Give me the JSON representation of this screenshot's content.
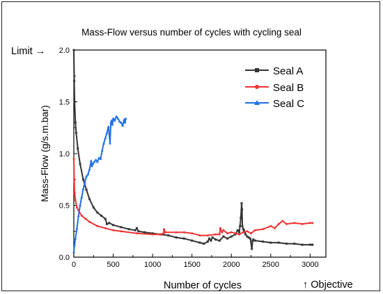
{
  "chart_data": {
    "type": "line",
    "title": "Mass-Flow versus number of cycles with cycling seal",
    "xlabel": "Number of cycles",
    "ylabel": "Mass-Flow (g/s.m.bar)",
    "xlim": [
      0,
      3200
    ],
    "ylim": [
      0,
      2.0
    ],
    "x_ticks": [
      "0",
      "500",
      "1000",
      "1500",
      "2000",
      "2500",
      "3000"
    ],
    "y_ticks": [
      "0.0",
      "0.5",
      "1.0",
      "1.5",
      "2.0"
    ],
    "grid": false,
    "legend_position": "top-right",
    "series": [
      {
        "name": "Seal A",
        "color": "#333333",
        "marker": "square",
        "x": [
          0,
          5,
          10,
          20,
          30,
          50,
          80,
          120,
          160,
          200,
          250,
          300,
          350,
          400,
          420,
          450,
          500,
          600,
          700,
          780,
          800,
          820,
          900,
          1000,
          1100,
          1200,
          1300,
          1400,
          1500,
          1600,
          1650,
          1700,
          1720,
          1740,
          1760,
          1800,
          1850,
          1900,
          1950,
          2000,
          2050,
          2080,
          2100,
          2110,
          2120,
          2130,
          2135,
          2140,
          2150,
          2160,
          2170,
          2180,
          2200,
          2220,
          2240,
          2260,
          2270,
          2280,
          2300,
          2400,
          2500,
          2600,
          2700,
          2800,
          2900,
          3000,
          3030
        ],
        "y": [
          2.0,
          1.7,
          1.5,
          1.3,
          1.2,
          1.05,
          0.9,
          0.75,
          0.65,
          0.56,
          0.48,
          0.43,
          0.4,
          0.37,
          0.32,
          0.33,
          0.31,
          0.29,
          0.27,
          0.26,
          0.28,
          0.25,
          0.24,
          0.23,
          0.22,
          0.21,
          0.19,
          0.18,
          0.16,
          0.14,
          0.13,
          0.15,
          0.18,
          0.16,
          0.19,
          0.17,
          0.16,
          0.2,
          0.18,
          0.2,
          0.22,
          0.26,
          0.24,
          0.3,
          0.38,
          0.52,
          0.46,
          0.3,
          0.27,
          0.26,
          0.24,
          0.22,
          0.2,
          0.19,
          0.18,
          0.08,
          0.16,
          0.17,
          0.16,
          0.15,
          0.14,
          0.14,
          0.13,
          0.13,
          0.12,
          0.12,
          0.12
        ]
      },
      {
        "name": "Seal B",
        "color": "#ee3333",
        "marker": "circle",
        "x": [
          0,
          5,
          10,
          20,
          40,
          60,
          100,
          150,
          200,
          300,
          400,
          500,
          600,
          800,
          1000,
          1100,
          1140,
          1145,
          1160,
          1300,
          1400,
          1500,
          1600,
          1700,
          1800,
          1850,
          1860,
          1880,
          1900,
          1950,
          2000,
          2050,
          2100,
          2150,
          2200,
          2250,
          2300,
          2400,
          2500,
          2550,
          2600,
          2650,
          2700,
          2800,
          2900,
          3000,
          3030
        ],
        "y": [
          0.95,
          0.75,
          0.62,
          0.55,
          0.48,
          0.45,
          0.4,
          0.37,
          0.34,
          0.3,
          0.28,
          0.26,
          0.25,
          0.23,
          0.22,
          0.22,
          0.23,
          0.27,
          0.24,
          0.24,
          0.24,
          0.23,
          0.21,
          0.21,
          0.22,
          0.22,
          0.28,
          0.24,
          0.26,
          0.23,
          0.24,
          0.23,
          0.22,
          0.24,
          0.25,
          0.23,
          0.26,
          0.27,
          0.3,
          0.28,
          0.32,
          0.35,
          0.32,
          0.33,
          0.32,
          0.33,
          0.33
        ]
      },
      {
        "name": "Seal C",
        "color": "#1f6fe0",
        "marker": "triangle",
        "x": [
          0,
          10,
          20,
          40,
          60,
          80,
          100,
          120,
          140,
          160,
          180,
          200,
          220,
          230,
          240,
          260,
          280,
          300,
          320,
          340,
          360,
          380,
          400,
          420,
          440,
          460,
          470,
          480,
          490,
          500,
          520,
          540,
          560,
          580,
          600,
          620,
          640,
          650,
          660
        ],
        "y": [
          0.05,
          0.12,
          0.18,
          0.28,
          0.4,
          0.5,
          0.58,
          0.66,
          0.72,
          0.78,
          0.8,
          0.85,
          0.93,
          0.88,
          0.9,
          0.92,
          0.94,
          0.92,
          0.96,
          0.95,
          1.03,
          1.1,
          1.15,
          1.2,
          1.26,
          1.1,
          1.3,
          1.32,
          1.28,
          1.34,
          1.32,
          1.36,
          1.34,
          1.31,
          1.3,
          1.27,
          1.33,
          1.3,
          1.34
        ]
      }
    ],
    "annotations": {
      "limit": "Limit →",
      "objective": "↑ Objective",
      "color": "#ee2222"
    }
  }
}
